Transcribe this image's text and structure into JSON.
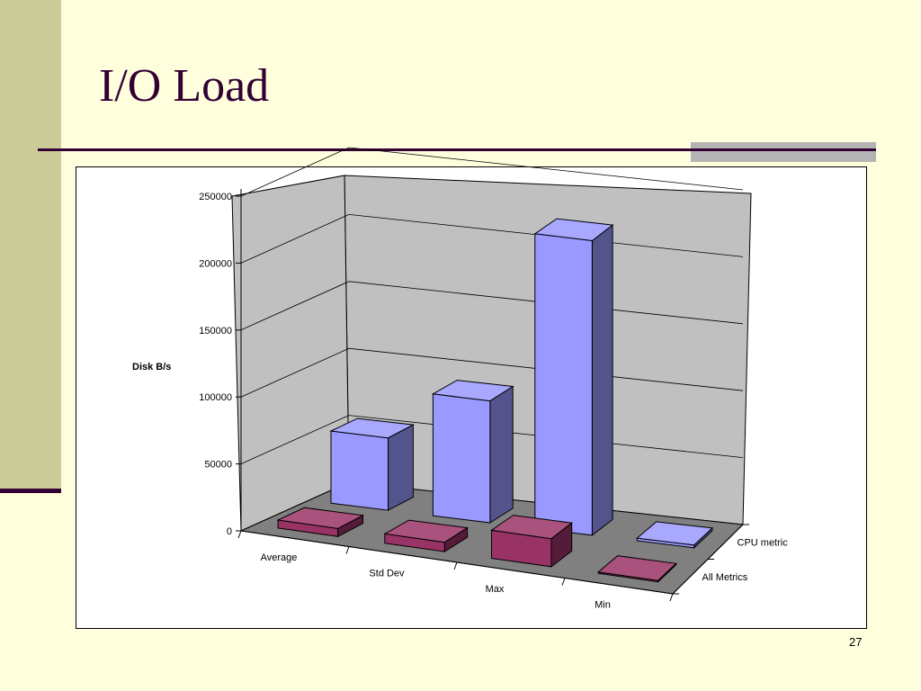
{
  "slide": {
    "title": "I/O Load",
    "page_number": "27"
  },
  "colors": {
    "background": "#FFFFDD",
    "left_strip": "#CCCC99",
    "accent_dark": "#330033",
    "accent_gray": "#B4B4B4"
  },
  "chart_data": {
    "type": "bar",
    "style": "3d-column",
    "title": "",
    "ylabel": "Disk B/s",
    "xlabel": "",
    "ylim": [
      0,
      250000
    ],
    "yticks": [
      0,
      50000,
      100000,
      150000,
      200000,
      250000
    ],
    "categories": [
      "Average",
      "Std Dev",
      "Max",
      "Min"
    ],
    "series": [
      {
        "name": "CPU metric",
        "color": "#9999FF",
        "values": [
          54000,
          91000,
          220000,
          2000
        ]
      },
      {
        "name": "All Metrics",
        "color": "#993366",
        "values": [
          6000,
          7000,
          21000,
          1000
        ]
      }
    ],
    "grid": true,
    "legend": "depth-axis"
  }
}
